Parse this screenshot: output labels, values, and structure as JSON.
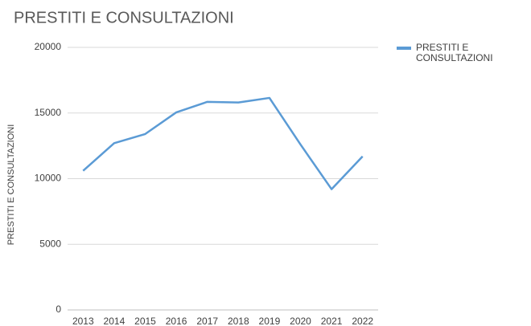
{
  "chart_data": {
    "type": "line",
    "title": "PRESTITI E CONSULTAZIONI",
    "y_label": "PRESTITI E CONSULTAZIONI",
    "categories": [
      "2013",
      "2014",
      "2015",
      "2016",
      "2017",
      "2018",
      "2019",
      "2020",
      "2021",
      "2022"
    ],
    "series": [
      {
        "name": "PRESTITI E CONSULTAZIONI",
        "color": "#5b9bd5",
        "values": [
          10600,
          12700,
          13400,
          15050,
          15850,
          15800,
          16150,
          12600,
          9200,
          11700
        ]
      }
    ],
    "ylim": [
      0,
      20000
    ],
    "yticks": [
      0,
      5000,
      10000,
      15000,
      20000
    ],
    "grid": true,
    "legend": "right"
  }
}
